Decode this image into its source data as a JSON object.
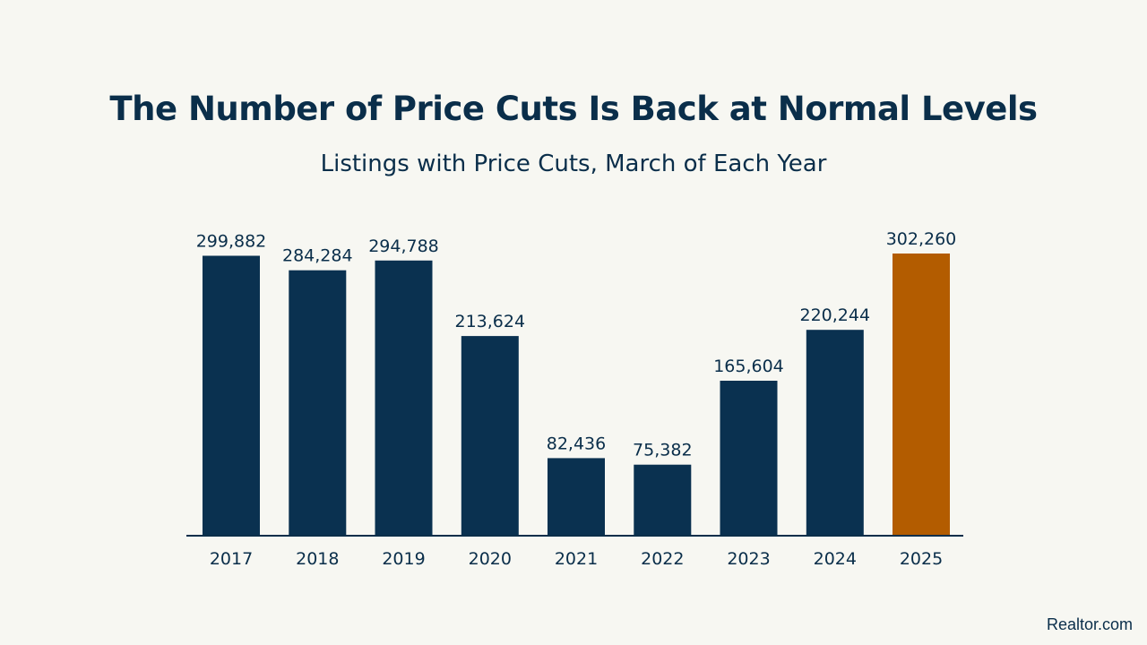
{
  "title": "The Number of Price Cuts Is Back at Normal Levels",
  "subtitle": "Listings with Price Cuts, March of Each Year",
  "source": "Realtor.com",
  "colors": {
    "bar": "#0a3150",
    "highlight": "#b35c00",
    "axis": "#0a2e4a",
    "text": "#0a2e4a",
    "background": "#f7f7f2"
  },
  "chart_data": {
    "type": "bar",
    "title": "The Number of Price Cuts Is Back at Normal Levels",
    "subtitle": "Listings with Price Cuts, March of Each Year",
    "categories": [
      "2017",
      "2018",
      "2019",
      "2020",
      "2021",
      "2022",
      "2023",
      "2024",
      "2025"
    ],
    "values": [
      299882,
      284284,
      294788,
      213624,
      82436,
      75382,
      165604,
      220244,
      302260
    ],
    "value_labels": [
      "299,882",
      "284,284",
      "294,788",
      "213,624",
      "82,436",
      "75,382",
      "165,604",
      "220,244",
      "302,260"
    ],
    "highlight_category": "2025",
    "xlabel": "",
    "ylabel": "",
    "ylim": [
      0,
      302260
    ],
    "grid": false,
    "legend": "none"
  }
}
